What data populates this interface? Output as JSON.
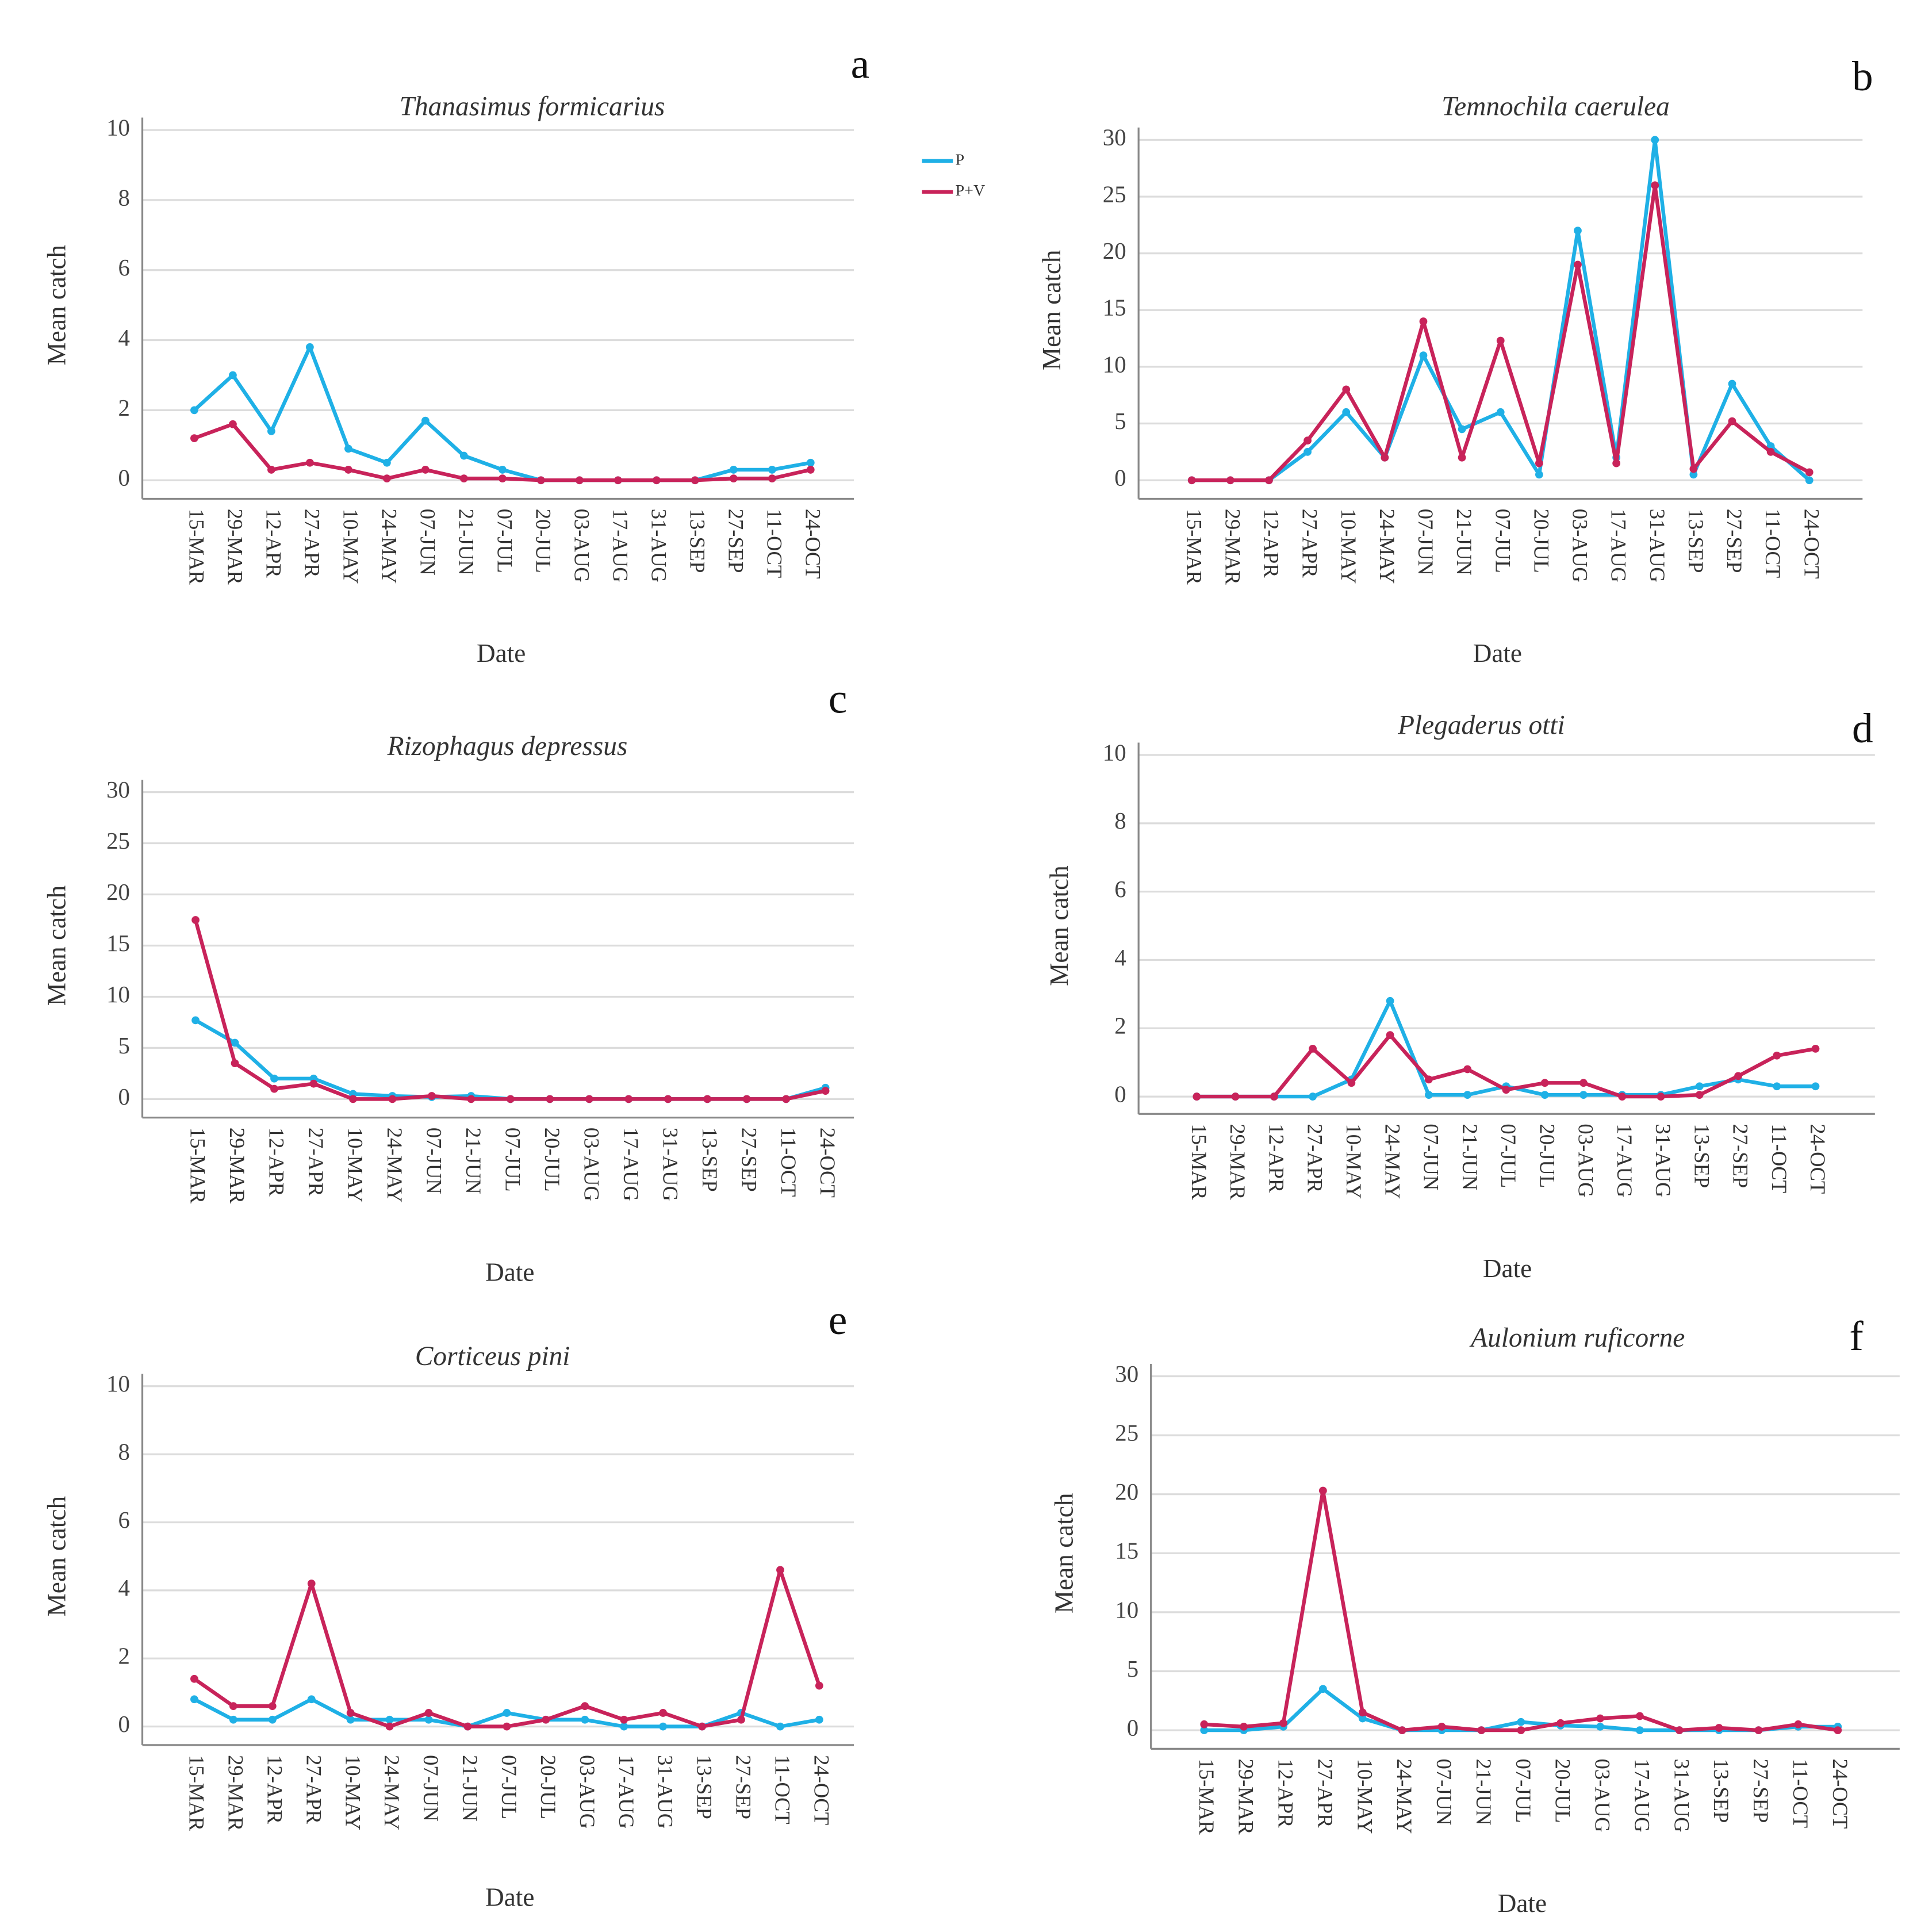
{
  "chart_data": [
    {
      "type": "line",
      "panel": "a",
      "title": "Thanasimus formicarius",
      "x_label": "Date",
      "y_label": "Mean catch",
      "categories": [
        "15-MAR",
        "29-MAR",
        "12-APR",
        "27-APR",
        "10-MAY",
        "24-MAY",
        "07-JUN",
        "21-JUN",
        "07-JUL",
        "20-JUL",
        "03-AUG",
        "17-AUG",
        "31-AUG",
        "13-SEP",
        "27-SEP",
        "11-OCT",
        "24-OCT"
      ],
      "ylim": [
        0,
        10
      ],
      "yticks": [
        0,
        2,
        4,
        6,
        8,
        10
      ],
      "grid": true,
      "legend": "right",
      "series": [
        {
          "name": "P",
          "color": "#1fb0e6",
          "values": [
            2.0,
            3.0,
            1.4,
            3.8,
            0.9,
            0.5,
            1.7,
            0.7,
            0.3,
            0,
            0,
            0,
            0,
            0,
            0.3,
            0.3,
            0.5
          ]
        },
        {
          "name": "P+V",
          "color": "#c8235a",
          "values": [
            1.2,
            1.6,
            0.3,
            0.5,
            0.3,
            0.05,
            0.3,
            0.05,
            0.05,
            0,
            0,
            0,
            0,
            0,
            0.05,
            0.05,
            0.3
          ]
        }
      ]
    },
    {
      "type": "line",
      "panel": "b",
      "title": "Temnochila caerulea",
      "x_label": "Date",
      "y_label": "Mean catch",
      "categories": [
        "15-MAR",
        "29-MAR",
        "12-APR",
        "27-APR",
        "10-MAY",
        "24-MAY",
        "07-JUN",
        "21-JUN",
        "07-JUL",
        "20-JUL",
        "03-AUG",
        "17-AUG",
        "31-AUG",
        "13-SEP",
        "27-SEP",
        "11-OCT",
        "24-OCT"
      ],
      "ylim": [
        0,
        30
      ],
      "yticks": [
        0,
        5,
        10,
        15,
        20,
        25,
        30
      ],
      "grid": true,
      "series": [
        {
          "color": "#1fb0e6",
          "values": [
            0,
            0,
            0,
            2.5,
            6,
            2,
            11,
            4.5,
            6,
            0.5,
            22,
            2,
            30,
            0.5,
            8.5,
            3,
            0
          ]
        },
        {
          "color": "#c8235a",
          "values": [
            0,
            0,
            0,
            3.5,
            8,
            2,
            14,
            2,
            12.3,
            1.5,
            19,
            1.5,
            26,
            1,
            5.2,
            2.5,
            0.7
          ]
        }
      ]
    },
    {
      "type": "line",
      "panel": "c",
      "title": "Rizophagus depressus",
      "x_label": "Date",
      "y_label": "Mean catch",
      "categories": [
        "15-MAR",
        "29-MAR",
        "12-APR",
        "27-APR",
        "10-MAY",
        "24-MAY",
        "07-JUN",
        "21-JUN",
        "07-JUL",
        "20-JUL",
        "03-AUG",
        "17-AUG",
        "31-AUG",
        "13-SEP",
        "27-SEP",
        "11-OCT",
        "24-OCT"
      ],
      "ylim": [
        0,
        30
      ],
      "yticks": [
        0,
        5,
        10,
        15,
        20,
        25,
        30
      ],
      "grid": true,
      "series": [
        {
          "color": "#1fb0e6",
          "values": [
            7.7,
            5.5,
            2,
            2,
            0.5,
            0.3,
            0.2,
            0.3,
            0,
            0,
            0,
            0,
            0,
            0,
            0,
            0,
            1.1
          ]
        },
        {
          "color": "#c8235a",
          "values": [
            17.5,
            3.5,
            1,
            1.5,
            0,
            0,
            0.3,
            0,
            0,
            0,
            0,
            0,
            0,
            0,
            0,
            0,
            0.8
          ]
        }
      ]
    },
    {
      "type": "line",
      "panel": "d",
      "title": "Plegaderus otti",
      "x_label": "Date",
      "y_label": "Mean catch",
      "categories": [
        "15-MAR",
        "29-MAR",
        "12-APR",
        "27-APR",
        "10-MAY",
        "24-MAY",
        "07-JUN",
        "21-JUN",
        "07-JUL",
        "20-JUL",
        "03-AUG",
        "17-AUG",
        "31-AUG",
        "13-SEP",
        "27-SEP",
        "11-OCT",
        "24-OCT"
      ],
      "ylim": [
        0,
        10
      ],
      "yticks": [
        0,
        2,
        4,
        6,
        8,
        10
      ],
      "grid": true,
      "series": [
        {
          "color": "#1fb0e6",
          "values": [
            0,
            0,
            0,
            0,
            0.5,
            2.8,
            0.05,
            0.05,
            0.3,
            0.05,
            0.05,
            0.05,
            0.05,
            0.3,
            0.5,
            0.3,
            0.3
          ]
        },
        {
          "color": "#c8235a",
          "values": [
            0,
            0,
            0,
            1.4,
            0.4,
            1.8,
            0.5,
            0.8,
            0.2,
            0.4,
            0.4,
            0,
            0,
            0.05,
            0.6,
            1.2,
            1.4
          ]
        }
      ]
    },
    {
      "type": "line",
      "panel": "e",
      "title": "Corticeus pini",
      "x_label": "Date",
      "y_label": "Mean catch",
      "categories": [
        "15-MAR",
        "29-MAR",
        "12-APR",
        "27-APR",
        "10-MAY",
        "24-MAY",
        "07-JUN",
        "21-JUN",
        "07-JUL",
        "20-JUL",
        "03-AUG",
        "17-AUG",
        "31-AUG",
        "13-SEP",
        "27-SEP",
        "11-OCT",
        "24-OCT"
      ],
      "ylim": [
        0,
        10
      ],
      "yticks": [
        0,
        2,
        4,
        6,
        8,
        10
      ],
      "grid": true,
      "series": [
        {
          "color": "#1fb0e6",
          "values": [
            0.8,
            0.2,
            0.2,
            0.8,
            0.2,
            0.2,
            0.2,
            0,
            0.4,
            0.2,
            0.2,
            0,
            0,
            0,
            0.4,
            0,
            0.2
          ]
        },
        {
          "color": "#c8235a",
          "values": [
            1.4,
            0.6,
            0.6,
            4.2,
            0.4,
            0,
            0.4,
            0,
            0,
            0.2,
            0.6,
            0.2,
            0.4,
            0,
            0.2,
            4.6,
            1.2
          ]
        }
      ]
    },
    {
      "type": "line",
      "panel": "f",
      "title": "Aulonium ruficorne",
      "x_label": "Date",
      "y_label": "Mean catch",
      "categories": [
        "15-MAR",
        "29-MAR",
        "12-APR",
        "27-APR",
        "10-MAY",
        "24-MAY",
        "07-JUN",
        "21-JUN",
        "07-JUL",
        "20-JUL",
        "03-AUG",
        "17-AUG",
        "31-AUG",
        "13-SEP",
        "27-SEP",
        "11-OCT",
        "24-OCT"
      ],
      "ylim": [
        0,
        30
      ],
      "yticks": [
        0,
        5,
        10,
        15,
        20,
        25,
        30
      ],
      "grid": true,
      "series": [
        {
          "color": "#1fb0e6",
          "values": [
            0,
            0,
            0.3,
            3.5,
            1,
            0,
            0,
            0,
            0.7,
            0.4,
            0.3,
            0,
            0,
            0,
            0,
            0.3,
            0.3
          ]
        },
        {
          "color": "#c8235a",
          "values": [
            0.5,
            0.3,
            0.6,
            20.3,
            1.5,
            0,
            0.3,
            0,
            0,
            0.6,
            1,
            1.2,
            0,
            0.2,
            0,
            0.5,
            0
          ]
        }
      ]
    }
  ]
}
